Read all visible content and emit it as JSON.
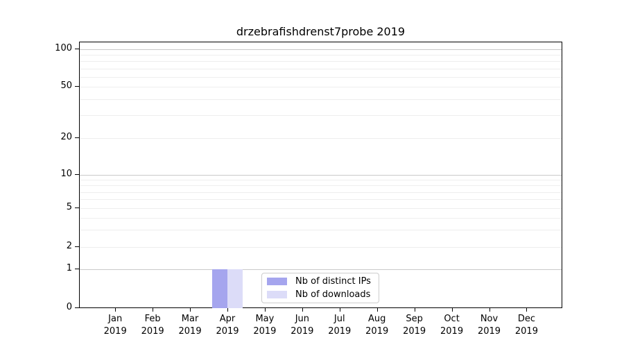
{
  "title": "drzebrafishdrenst7probe 2019",
  "chart_data": {
    "type": "bar",
    "title": "drzebrafishdrenst7probe 2019",
    "categories": [
      "Jan 2019",
      "Feb 2019",
      "Mar 2019",
      "Apr 2019",
      "May 2019",
      "Jun 2019",
      "Jul 2019",
      "Aug 2019",
      "Sep 2019",
      "Oct 2019",
      "Nov 2019",
      "Dec 2019"
    ],
    "series": [
      {
        "name": "Nb of distinct IPs",
        "color": "#a5a5ee",
        "values": [
          0,
          0,
          0,
          1,
          0,
          0,
          0,
          0,
          0,
          0,
          0,
          0
        ]
      },
      {
        "name": "Nb of downloads",
        "color": "#dcdcf8",
        "values": [
          0,
          0,
          0,
          1,
          0,
          0,
          0,
          0,
          0,
          0,
          0,
          0
        ]
      }
    ],
    "xlabel": "",
    "ylabel": "",
    "y_scale": "symlog",
    "y_ticks": [
      0,
      1,
      2,
      5,
      10,
      20,
      50,
      100
    ],
    "y_minor_ticks": [
      3,
      4,
      6,
      7,
      8,
      9,
      30,
      40,
      60,
      70,
      80,
      90
    ],
    "ylim": [
      0,
      130
    ],
    "grid": "horizontal",
    "legend_position": "lower center inside"
  },
  "x_axis": {
    "months": [
      "Jan",
      "Feb",
      "Mar",
      "Apr",
      "May",
      "Jun",
      "Jul",
      "Aug",
      "Sep",
      "Oct",
      "Nov",
      "Dec"
    ],
    "year_label": "2019"
  },
  "legend": {
    "items": [
      {
        "label": "Nb of distinct IPs",
        "color": "#a5a5ee"
      },
      {
        "label": "Nb of downloads",
        "color": "#dcdcf8"
      }
    ]
  },
  "colors": {
    "major_grid": "#c9c9c9",
    "minor_grid": "#eeeeee",
    "spine": "#000000",
    "background": "#ffffff"
  }
}
